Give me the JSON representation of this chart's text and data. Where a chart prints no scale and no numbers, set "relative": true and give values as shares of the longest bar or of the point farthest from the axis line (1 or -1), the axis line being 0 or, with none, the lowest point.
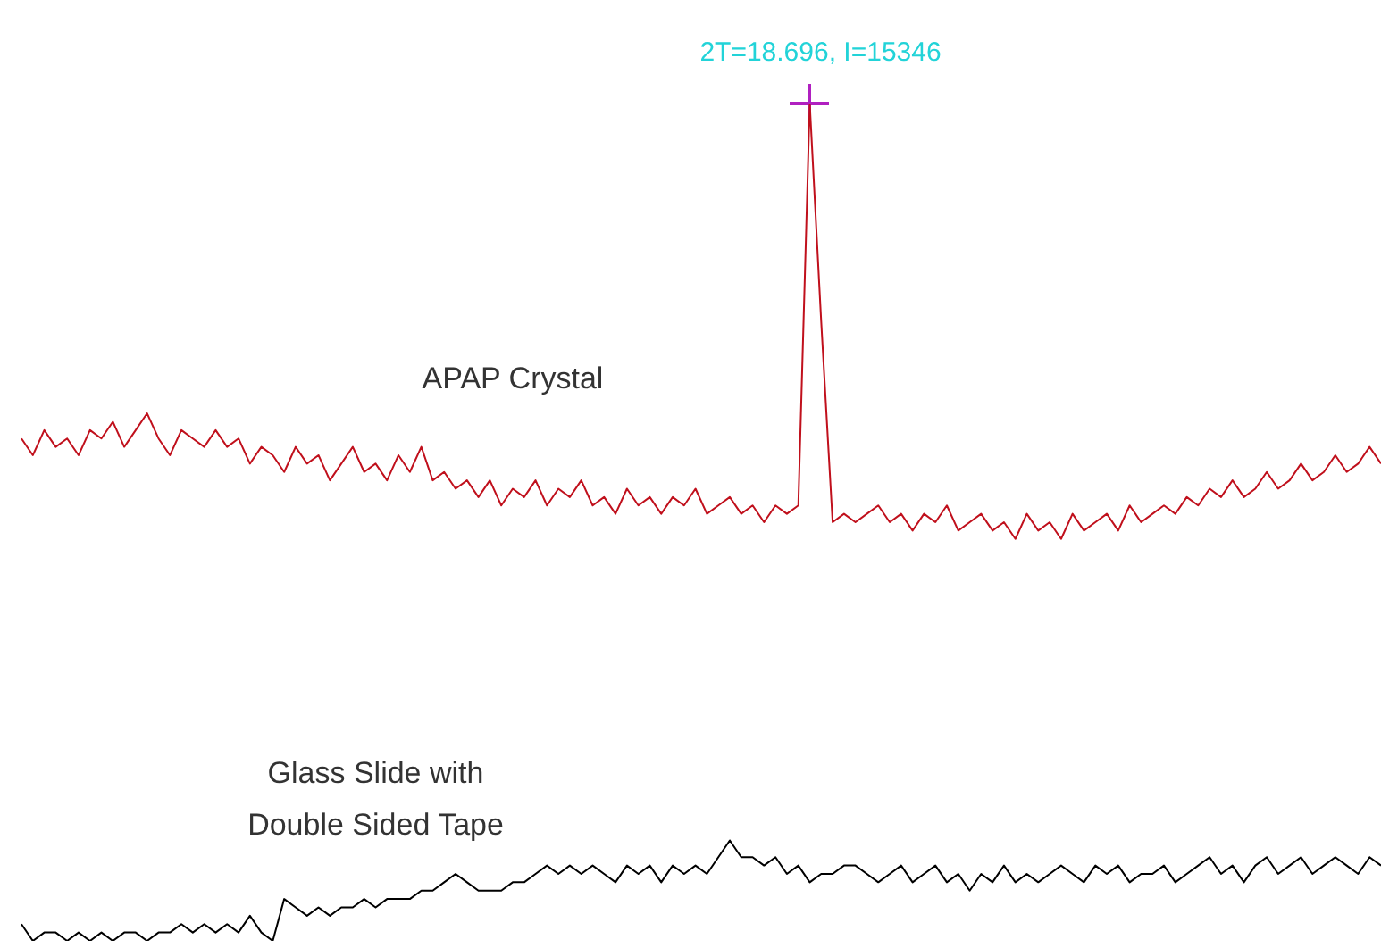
{
  "chart_data": {
    "type": "line",
    "relative": true,
    "legend": false,
    "marker": "none",
    "annotations": [
      "2T=18.696, I=15346"
    ],
    "categories": [
      null,
      null,
      null,
      null,
      null,
      null,
      null,
      null,
      null,
      null,
      null,
      null,
      null,
      null,
      null,
      null,
      null,
      null,
      null,
      null,
      null,
      null,
      null,
      null,
      null,
      null,
      null,
      null,
      null,
      null,
      null,
      null,
      null,
      null,
      null,
      null,
      null,
      null,
      null,
      null,
      null,
      null,
      null,
      null,
      null,
      null,
      null,
      null,
      null,
      null,
      null,
      null,
      null,
      null,
      null,
      null,
      null,
      null,
      null,
      null,
      null,
      null,
      null,
      null,
      null,
      null,
      null,
      null,
      null,
      null,
      null,
      null,
      null,
      null,
      null,
      null,
      null,
      null,
      null,
      null,
      null,
      null,
      null,
      null,
      null,
      null,
      null,
      null,
      null,
      null,
      null,
      null,
      null,
      null,
      null,
      null,
      null,
      null,
      null,
      null,
      null,
      null,
      null,
      null,
      null,
      null,
      null,
      null,
      null,
      null,
      null,
      null,
      null,
      null,
      null,
      null,
      null,
      null,
      null,
      null
    ],
    "series": [
      {
        "name": "APAP Crystal",
        "color": "#c0101c",
        "values": [
          0.6,
          0.58,
          0.61,
          0.59,
          0.6,
          0.58,
          0.61,
          0.6,
          0.62,
          0.59,
          0.61,
          0.63,
          0.6,
          0.58,
          0.61,
          0.6,
          0.59,
          0.61,
          0.59,
          0.6,
          0.57,
          0.59,
          0.58,
          0.56,
          0.59,
          0.57,
          0.58,
          0.55,
          0.57,
          0.59,
          0.56,
          0.57,
          0.55,
          0.58,
          0.56,
          0.59,
          0.55,
          0.56,
          0.54,
          0.55,
          0.53,
          0.55,
          0.52,
          0.54,
          0.53,
          0.55,
          0.52,
          0.54,
          0.53,
          0.55,
          0.52,
          0.53,
          0.51,
          0.54,
          0.52,
          0.53,
          0.51,
          0.53,
          0.52,
          0.54,
          0.51,
          0.52,
          0.53,
          0.51,
          0.52,
          0.5,
          0.52,
          0.51,
          0.52,
          1.0,
          0.74,
          0.5,
          0.51,
          0.5,
          0.51,
          0.52,
          0.5,
          0.51,
          0.49,
          0.51,
          0.5,
          0.52,
          0.49,
          0.5,
          0.51,
          0.49,
          0.5,
          0.48,
          0.51,
          0.49,
          0.5,
          0.48,
          0.51,
          0.49,
          0.5,
          0.51,
          0.49,
          0.52,
          0.5,
          0.51,
          0.52,
          0.51,
          0.53,
          0.52,
          0.54,
          0.53,
          0.55,
          0.53,
          0.54,
          0.56,
          0.54,
          0.55,
          0.57,
          0.55,
          0.56,
          0.58,
          0.56,
          0.57,
          0.59,
          0.57
        ]
      },
      {
        "name": "Glass Slide with Double Sided Tape",
        "color": "#000000",
        "values": [
          0.02,
          0.0,
          0.01,
          0.01,
          0.0,
          0.01,
          0.0,
          0.01,
          0.0,
          0.01,
          0.01,
          0.0,
          0.01,
          0.01,
          0.02,
          0.01,
          0.02,
          0.01,
          0.02,
          0.01,
          0.03,
          0.01,
          0.0,
          0.05,
          0.04,
          0.03,
          0.04,
          0.03,
          0.04,
          0.04,
          0.05,
          0.04,
          0.05,
          0.05,
          0.05,
          0.06,
          0.06,
          0.07,
          0.08,
          0.07,
          0.06,
          0.06,
          0.06,
          0.07,
          0.07,
          0.08,
          0.09,
          0.08,
          0.09,
          0.08,
          0.09,
          0.08,
          0.07,
          0.09,
          0.08,
          0.09,
          0.07,
          0.09,
          0.08,
          0.09,
          0.08,
          0.1,
          0.12,
          0.1,
          0.1,
          0.09,
          0.1,
          0.08,
          0.09,
          0.07,
          0.08,
          0.08,
          0.09,
          0.09,
          0.08,
          0.07,
          0.08,
          0.09,
          0.07,
          0.08,
          0.09,
          0.07,
          0.08,
          0.06,
          0.08,
          0.07,
          0.09,
          0.07,
          0.08,
          0.07,
          0.08,
          0.09,
          0.08,
          0.07,
          0.09,
          0.08,
          0.09,
          0.07,
          0.08,
          0.08,
          0.09,
          0.07,
          0.08,
          0.09,
          0.1,
          0.08,
          0.09,
          0.07,
          0.09,
          0.1,
          0.08,
          0.09,
          0.1,
          0.08,
          0.09,
          0.1,
          0.09,
          0.08,
          0.1,
          0.09
        ]
      }
    ]
  }
}
